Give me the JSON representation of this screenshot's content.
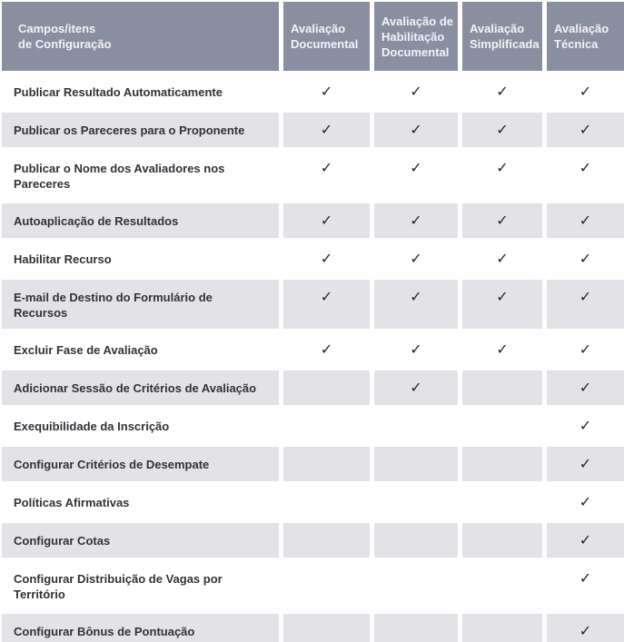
{
  "colors": {
    "header_bg": "#8a8ea1",
    "header_text": "#f2f2f7",
    "row_alt_bg": "#e3e2e7",
    "row_bg": "#ffffff",
    "label_text": "#32323a",
    "check": "#26262c"
  },
  "table": {
    "check_symbol": "✓",
    "header": {
      "row_label_column": "Campos/itens\nde Configuração",
      "columns": [
        "Avaliação Documental",
        "Avaliação de Habilitação Documental",
        "Avaliação Simplificada",
        "Avaliação Técnica"
      ]
    },
    "rows": [
      {
        "label": "Publicar Resultado Automaticamente",
        "checks": [
          true,
          true,
          true,
          true
        ]
      },
      {
        "label": "Publicar os Pareceres para o Proponente",
        "checks": [
          true,
          true,
          true,
          true
        ]
      },
      {
        "label": "Publicar o Nome dos Avaliadores nos Pareceres",
        "checks": [
          true,
          true,
          true,
          true
        ]
      },
      {
        "label": "Autoaplicação de Resultados",
        "checks": [
          true,
          true,
          true,
          true
        ]
      },
      {
        "label": "Habilitar Recurso",
        "checks": [
          true,
          true,
          true,
          true
        ]
      },
      {
        "label": "E-mail de Destino do Formulário de Recursos",
        "checks": [
          true,
          true,
          true,
          true
        ]
      },
      {
        "label": "Excluir Fase de Avaliação",
        "checks": [
          true,
          true,
          true,
          true
        ]
      },
      {
        "label": "Adicionar Sessão de Critérios de Avaliação",
        "checks": [
          false,
          true,
          false,
          true
        ]
      },
      {
        "label": "Exequibilidade da Inscrição",
        "checks": [
          false,
          false,
          false,
          true
        ]
      },
      {
        "label": "Configurar Critérios de Desempate",
        "checks": [
          false,
          false,
          false,
          true
        ]
      },
      {
        "label": "Políticas Afirmativas",
        "checks": [
          false,
          false,
          false,
          true
        ]
      },
      {
        "label": "Configurar Cotas",
        "checks": [
          false,
          false,
          false,
          true
        ]
      },
      {
        "label": "Configurar Distribuição de Vagas por Território",
        "checks": [
          false,
          false,
          false,
          true
        ]
      },
      {
        "label": "Configurar Bônus de Pontuação",
        "checks": [
          false,
          false,
          false,
          true
        ]
      }
    ]
  }
}
